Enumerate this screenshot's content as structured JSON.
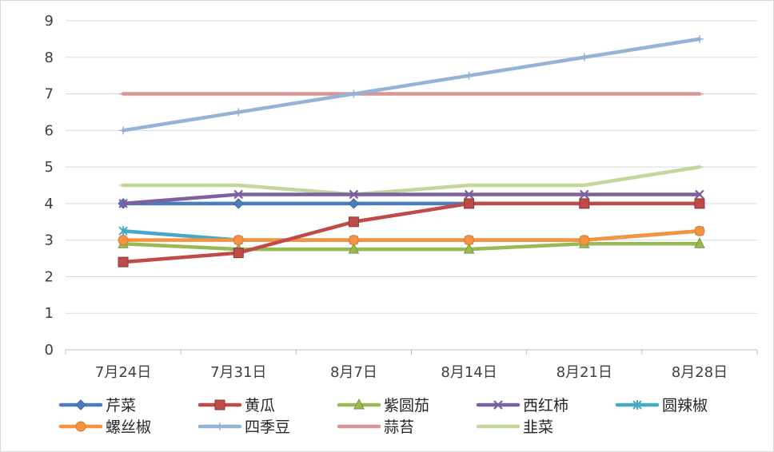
{
  "chart_data": {
    "type": "line",
    "title": "",
    "xlabel": "",
    "ylabel": "",
    "ylim": [
      0,
      9
    ],
    "yticks": [
      "0",
      "1",
      "2",
      "3",
      "4",
      "5",
      "6",
      "7",
      "8",
      "9"
    ],
    "categories": [
      "7月24日",
      "7月31日",
      "8月7日",
      "8月14日",
      "8月21日",
      "8月28日"
    ],
    "grid": "horizontal",
    "legend_position": "bottom",
    "series": [
      {
        "name": "芹菜",
        "color": "#4a7ebb",
        "marker": "diamond",
        "values": [
          4,
          4,
          4,
          4,
          4,
          4
        ]
      },
      {
        "name": "黄瓜",
        "color": "#be4b48",
        "marker": "square",
        "values": [
          2.4,
          2.65,
          3.5,
          4,
          4,
          4
        ]
      },
      {
        "name": "紫圆茄",
        "color": "#98b954",
        "marker": "triangle",
        "values": [
          2.9,
          2.75,
          2.75,
          2.75,
          2.9,
          2.9
        ]
      },
      {
        "name": "西红柿",
        "color": "#7d60a0",
        "marker": "x",
        "values": [
          4,
          4.25,
          4.25,
          4.25,
          4.25,
          4.25
        ]
      },
      {
        "name": "圆辣椒",
        "color": "#46aac5",
        "marker": "star",
        "values": [
          3.25,
          3,
          3,
          3,
          3,
          3.25
        ]
      },
      {
        "name": "螺丝椒",
        "color": "#f69240",
        "marker": "circle",
        "values": [
          3,
          3,
          3,
          3,
          3,
          3.25
        ]
      },
      {
        "name": "四季豆",
        "color": "#95b3d7",
        "marker": "plus",
        "values": [
          6,
          6.5,
          7,
          7.5,
          8,
          8.5
        ]
      },
      {
        "name": "蒜苔",
        "color": "#d99694",
        "marker": "dash",
        "values": [
          7,
          7,
          7,
          7,
          7,
          7
        ]
      },
      {
        "name": "韭菜",
        "color": "#c3d69b",
        "marker": "dash",
        "values": [
          4.5,
          4.5,
          4.25,
          4.5,
          4.5,
          5
        ]
      }
    ]
  }
}
